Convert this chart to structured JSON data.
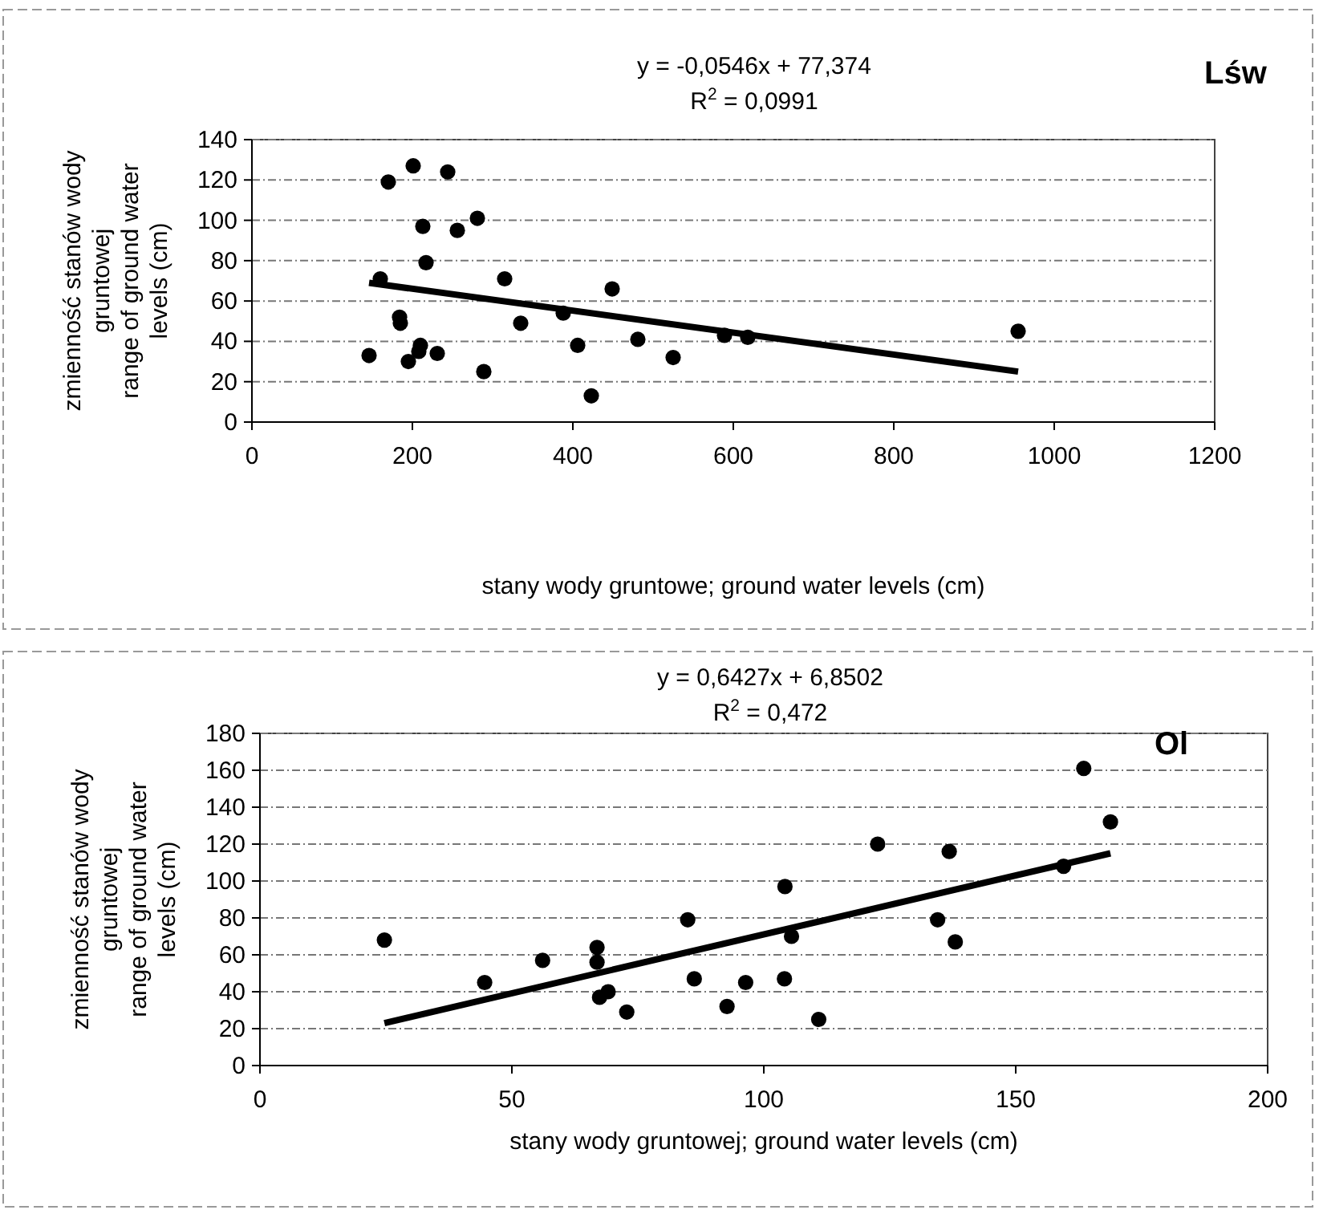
{
  "chart_data": [
    {
      "type": "scatter",
      "title": "Lśw",
      "xlabel": "stany wody gruntowe; ground water levels (cm)",
      "ylabel": "zmienność stanów wody\ngruntowej\nrange of ground water\nlevels (cm)",
      "annotations": [
        "y = -0,0546x + 77,374",
        "R$^{2}$ = 0,0991"
      ],
      "xlim": [
        0,
        1200
      ],
      "xticks": [
        0,
        200,
        400,
        600,
        800,
        1000,
        1200
      ],
      "ylim": [
        0,
        140
      ],
      "yticks": [
        0,
        20,
        40,
        60,
        80,
        100,
        120,
        140
      ],
      "grid": "y",
      "series": [
        {
          "marker": "circle",
          "color": "#000000",
          "x": [
            146,
            160,
            170,
            184,
            185,
            195,
            201,
            210,
            208,
            213,
            217,
            231,
            244,
            256,
            281,
            289,
            315,
            335,
            388,
            406,
            423,
            449,
            481,
            525,
            589,
            618,
            955
          ],
          "values": [
            33,
            71,
            119,
            52,
            49,
            30,
            127,
            38,
            35,
            97,
            79,
            34,
            124,
            95,
            101,
            25,
            71,
            49,
            54,
            38,
            13,
            66,
            41,
            32,
            43,
            42,
            45
          ]
        },
        {
          "type": "line",
          "marker": "none",
          "color": "#000000",
          "line_style": "solid",
          "x": [
            146,
            955
          ],
          "values": [
            69,
            25
          ]
        }
      ]
    },
    {
      "type": "scatter",
      "title": "Ol",
      "xlabel": "stany wody gruntowej; ground water levels (cm)",
      "ylabel": "zmienność stanów wody\ngruntowej\nrange of ground water\nlevels (cm)",
      "annotations": [
        "y = 0,6427x + 6,8502",
        "R$^{2}$ = 0,472"
      ],
      "xlim": [
        0,
        200
      ],
      "xticks": [
        0,
        50,
        100,
        150,
        200
      ],
      "ylim": [
        0,
        180
      ],
      "yticks": [
        0,
        20,
        40,
        60,
        80,
        100,
        120,
        140,
        160,
        180
      ],
      "grid": "y",
      "series": [
        {
          "marker": "circle",
          "color": "#000000",
          "x": [
            24.7,
            44.6,
            56.1,
            66.9,
            66.9,
            67.4,
            69.1,
            72.8,
            84.9,
            86.2,
            92.7,
            96.4,
            104.1,
            104.2,
            105.5,
            110.9,
            122.6,
            134.5,
            136.8,
            138,
            159.5,
            163.5,
            168.8
          ],
          "values": [
            68,
            45,
            57,
            64,
            56,
            37,
            40,
            29,
            79,
            47,
            32,
            45,
            47,
            97,
            70,
            25,
            120,
            79,
            116,
            67,
            108,
            161,
            132
          ]
        },
        {
          "type": "line",
          "color": "#000000",
          "line_style": "solid",
          "x": [
            24.7,
            168.8
          ],
          "values": [
            23,
            115
          ]
        }
      ]
    }
  ]
}
